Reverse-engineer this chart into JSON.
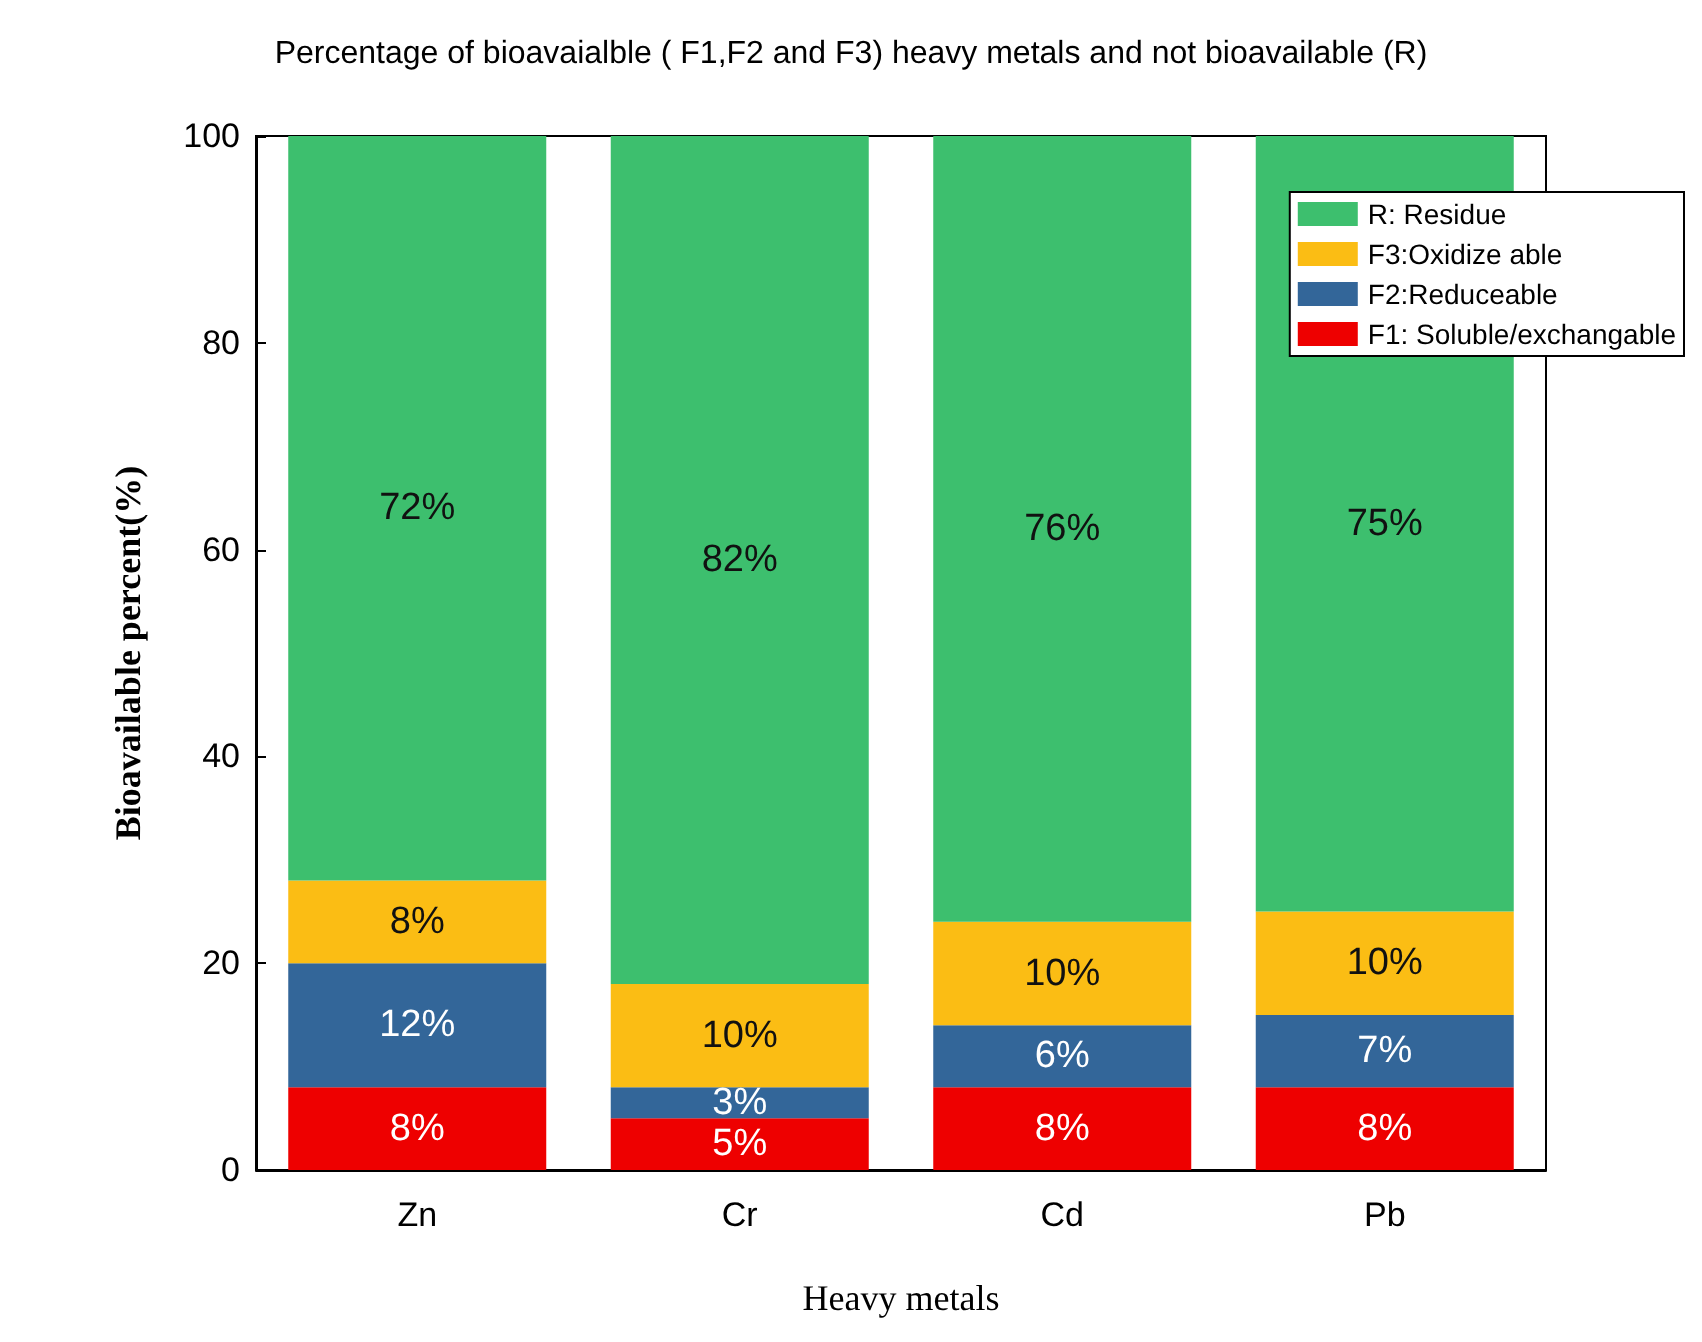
{
  "chart_data": {
    "type": "bar",
    "stacked": true,
    "title": "Percentage of bioavaialble ( F1,F2 and F3) heavy metals and not bioavailable (R)",
    "xlabel": "Heavy metals",
    "ylabel": "Bioavailable percent(%)",
    "categories": [
      "Zn",
      "Cr",
      "Cd",
      "Pb"
    ],
    "series": [
      {
        "name": "F1: Soluble/exchangable",
        "color": "#ee0000",
        "values": [
          8,
          5,
          8,
          8
        ],
        "value_labels": [
          "8%",
          "5%",
          "8%",
          "8%"
        ]
      },
      {
        "name": "F2:Reduceable",
        "color": "#336699",
        "values": [
          12,
          3,
          6,
          7
        ],
        "value_labels": [
          "12%",
          "3%",
          "6%",
          "7%"
        ]
      },
      {
        "name": "F3:Oxidize able",
        "color": "#fbbd14",
        "values": [
          8,
          10,
          10,
          10
        ],
        "value_labels": [
          "8%",
          "10%",
          "10%",
          "10%"
        ]
      },
      {
        "name": "R: Residue",
        "color": "#3dbf6e",
        "values": [
          72,
          82,
          76,
          75
        ],
        "value_labels": [
          "72%",
          "82%",
          "76%",
          "75%"
        ]
      }
    ],
    "ylim": [
      0,
      100
    ],
    "yticks": [
      0,
      20,
      40,
      60,
      80,
      100
    ],
    "grid": false,
    "legend": "top right"
  }
}
